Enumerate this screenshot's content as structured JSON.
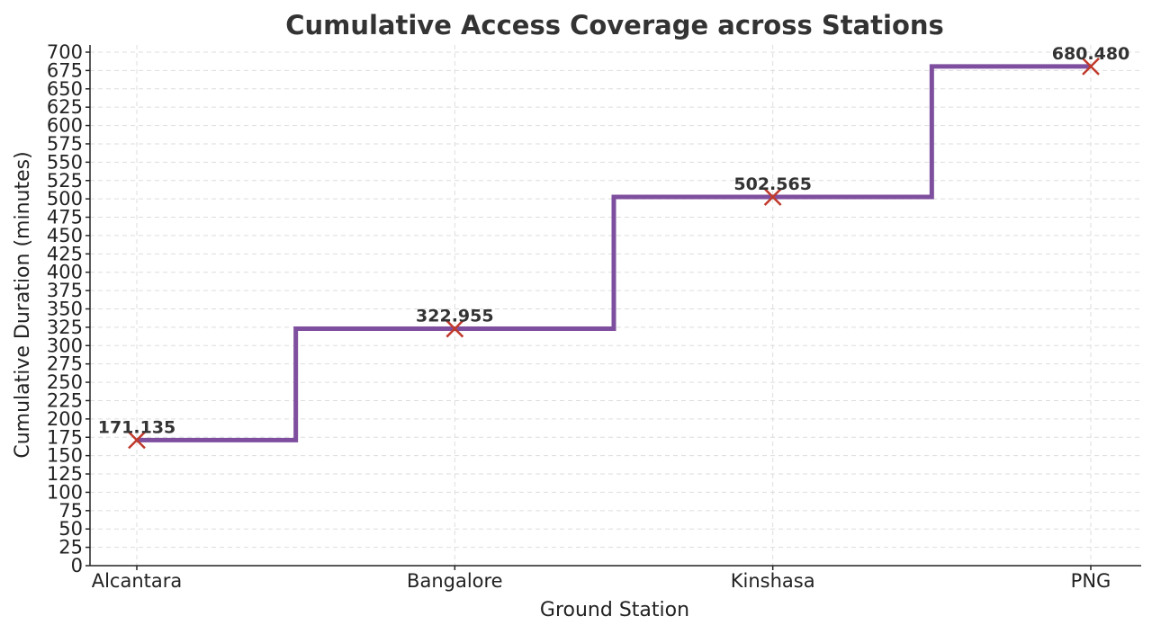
{
  "chart_data": {
    "type": "line",
    "step": "mid",
    "title": "Cumulative Access Coverage across Stations",
    "xlabel": "Ground Station",
    "ylabel": "Cumulative Duration (minutes)",
    "categories": [
      "Alcantara",
      "Bangalore",
      "Kinshasa",
      "PNG"
    ],
    "values": [
      171.135,
      322.955,
      502.565,
      680.48
    ],
    "data_labels": [
      "171.135",
      "322.955",
      "502.565",
      "680.480"
    ],
    "ylim": [
      0,
      700
    ],
    "ytick_step": 25,
    "grid": true,
    "marker": "x",
    "colors": {
      "line": "#7f4f9f",
      "marker": "#c0392b",
      "grid": "#dddddd",
      "axis": "#222222"
    }
  }
}
